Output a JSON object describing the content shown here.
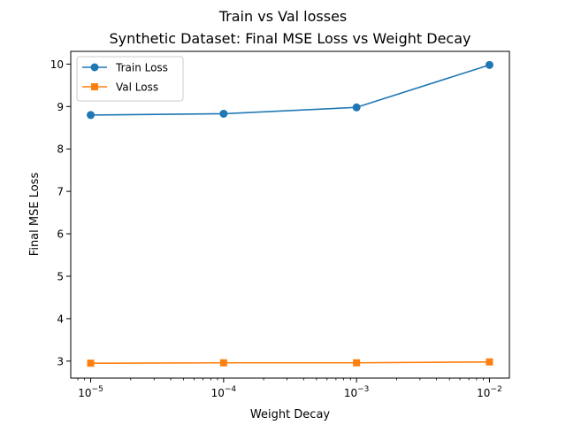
{
  "chart_data": {
    "type": "line",
    "suptitle": "Train vs Val losses",
    "title": "Synthetic Dataset: Final MSE Loss vs Weight Decay",
    "xlabel": "Weight Decay",
    "ylabel": "Final MSE Loss",
    "xscale": "log",
    "x": [
      1e-05,
      0.0001,
      0.001,
      0.01
    ],
    "xticks": [
      {
        "value": 1e-05,
        "base": "10",
        "exp": "−5"
      },
      {
        "value": 0.0001,
        "base": "10",
        "exp": "−4"
      },
      {
        "value": 0.001,
        "base": "10",
        "exp": "−3"
      },
      {
        "value": 0.01,
        "base": "10",
        "exp": "−2"
      }
    ],
    "xlim_log10": [
      -5.15,
      -1.85
    ],
    "ylim": [
      2.6,
      10.3
    ],
    "yticks": [
      "3",
      "4",
      "5",
      "6",
      "7",
      "8",
      "9",
      "10"
    ],
    "grid": false,
    "legend_position": "top-left",
    "series": [
      {
        "name": "Train Loss",
        "values": [
          8.8,
          8.83,
          8.98,
          9.98
        ],
        "color": "#1f77b4",
        "marker": "circle"
      },
      {
        "name": "Val Loss",
        "values": [
          2.95,
          2.96,
          2.96,
          2.98
        ],
        "color": "#ff7f0e",
        "marker": "square"
      }
    ]
  }
}
